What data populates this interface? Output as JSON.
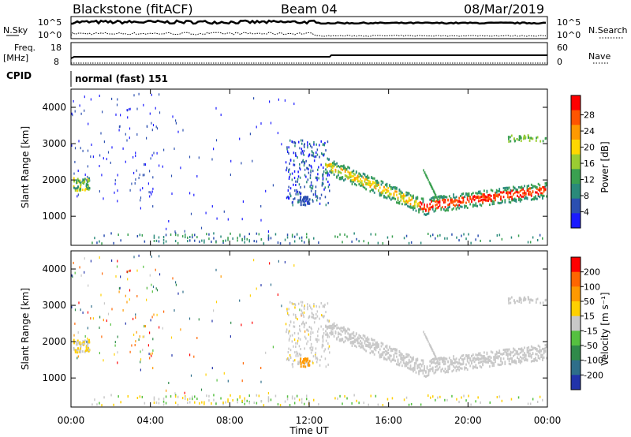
{
  "header": {
    "station": "Blackstone (fitACF)",
    "beam": "Beam 04",
    "date": "08/Mar/2019"
  },
  "noise_panel": {
    "left_label": "N.Sky",
    "right_label": "N.Search",
    "left_ticks": [
      "10^5",
      "10^0"
    ],
    "right_ticks": [
      "10^5",
      "10^0"
    ]
  },
  "freq_panel": {
    "left_label_1": "Freq.",
    "left_label_2": "[MHz]",
    "left_ticks": [
      "18",
      "8"
    ],
    "right_label": "Nave",
    "right_ticks": [
      "60",
      "0"
    ]
  },
  "cpid_panel": {
    "label": "CPID",
    "text": "normal (fast) 151"
  },
  "chart_data": [
    {
      "type": "heatmap",
      "name": "power",
      "ylabel": "Slant Range [km]",
      "ylim": [
        200,
        4500
      ],
      "yticks": [
        "1000",
        "2000",
        "3000",
        "4000"
      ],
      "xlim": [
        "00:00",
        "24:00"
      ],
      "colorbar": {
        "label": "Power [dB]",
        "ticks": [
          "4",
          "8",
          "12",
          "16",
          "20",
          "24",
          "28"
        ],
        "colors": [
          "#1a1aff",
          "#2b4fb0",
          "#2a8a7a",
          "#3aa050",
          "#9acd32",
          "#ffd700",
          "#ff9900",
          "#ff5500",
          "#ff0000"
        ]
      }
    },
    {
      "type": "heatmap",
      "name": "velocity",
      "ylabel": "Slant Range [km]",
      "ylim": [
        200,
        4500
      ],
      "yticks": [
        "1000",
        "2000",
        "3000",
        "4000"
      ],
      "xlim": [
        "00:00",
        "24:00"
      ],
      "colorbar": {
        "label": "Velocity [m s⁻¹]",
        "ticks": [
          "200",
          "100",
          "50",
          "15",
          "-15",
          "-50",
          "-100",
          "-200"
        ],
        "colors": [
          "#2233aa",
          "#2e6e8a",
          "#2f8a4a",
          "#55c040",
          "#c8c8c8",
          "#ffd000",
          "#ff9900",
          "#ff6600",
          "#ff0000"
        ]
      }
    }
  ],
  "xaxis": {
    "label": "Time UT",
    "ticks": [
      "00:00",
      "04:00",
      "08:00",
      "12:00",
      "16:00",
      "20:00",
      "00:00"
    ]
  }
}
